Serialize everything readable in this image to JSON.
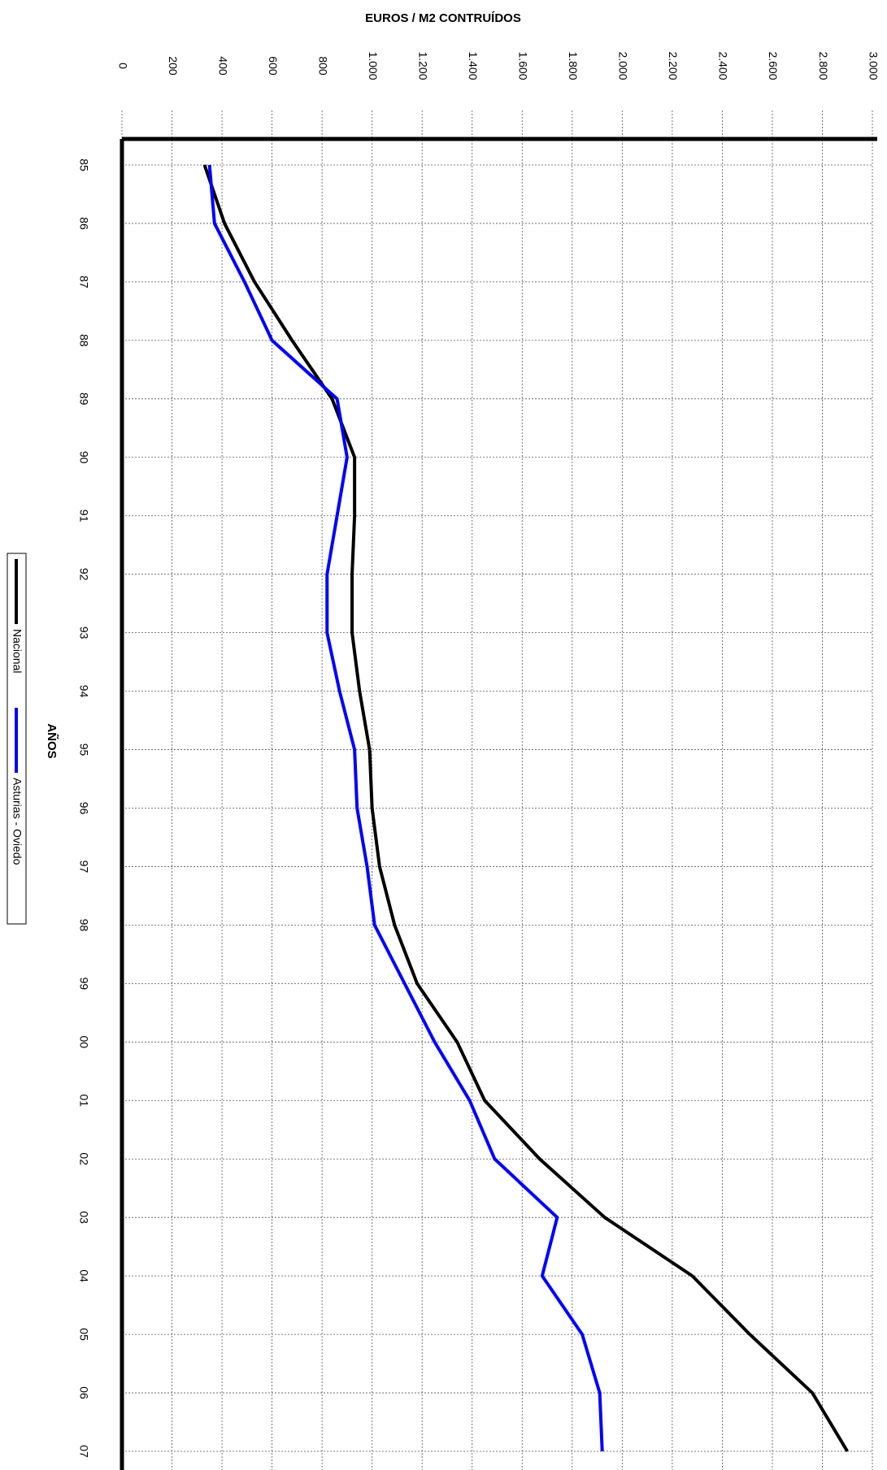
{
  "chart_data": {
    "type": "line",
    "title": "EUROS / M2 CONTRUÍDOS",
    "x_label": "AÑOS",
    "categories": [
      "85",
      "86",
      "87",
      "88",
      "89",
      "90",
      "91",
      "92",
      "93",
      "94",
      "95",
      "96",
      "97",
      "98",
      "99",
      "00",
      "01",
      "02",
      "03",
      "04",
      "05",
      "06",
      "07"
    ],
    "series": [
      {
        "name": "Nacional",
        "color": "#000000",
        "values": [
          330,
          410,
          530,
          680,
          840,
          930,
          930,
          920,
          920,
          950,
          990,
          1000,
          1030,
          1090,
          1180,
          1340,
          1450,
          1670,
          1930,
          2280,
          2510,
          2760,
          2900
        ]
      },
      {
        "name": "Asturias - Oviedo",
        "color": "#0000ff",
        "values": [
          350,
          370,
          490,
          600,
          860,
          900,
          860,
          820,
          820,
          870,
          930,
          940,
          980,
          1010,
          1130,
          1250,
          1390,
          1490,
          1740,
          1680,
          1840,
          1910,
          1920
        ]
      }
    ],
    "ylim": [
      0,
      3000
    ],
    "yticks": [
      0,
      200,
      400,
      600,
      800,
      {
        "value": 1000,
        "label": "1.000"
      },
      {
        "value": 1200,
        "label": "1.200"
      },
      {
        "value": 1400,
        "label": "1.400"
      },
      {
        "value": 1600,
        "label": "1.600"
      },
      {
        "value": 1800,
        "label": "1.800"
      },
      {
        "value": 2000,
        "label": "2.000"
      },
      {
        "value": 2200,
        "label": "2.200"
      },
      {
        "value": 2400,
        "label": "2.400"
      },
      {
        "value": 2600,
        "label": "2.600"
      },
      {
        "value": 2800,
        "label": "2.800"
      },
      {
        "value": 3000,
        "label": "3.000"
      }
    ],
    "grid": true,
    "legend": "left"
  }
}
